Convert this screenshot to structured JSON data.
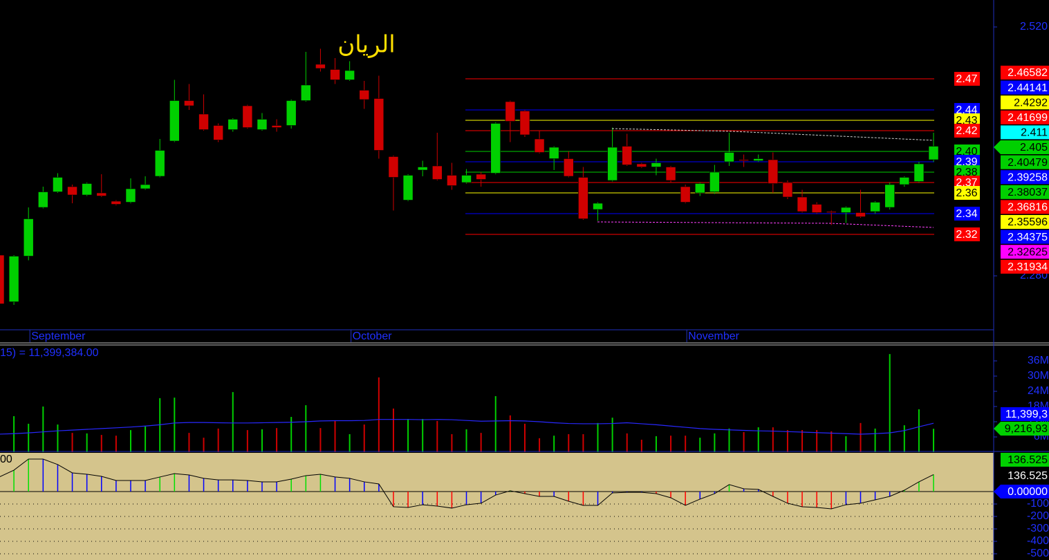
{
  "chart_data": [
    {
      "type": "candlestick",
      "title": "الريان",
      "categories": [
        null,
        null,
        "September",
        null,
        null,
        null,
        null,
        null,
        null,
        null,
        null,
        null,
        null,
        null,
        null,
        null,
        null,
        null,
        null,
        null,
        null,
        null,
        null,
        null,
        "October",
        null,
        null,
        null,
        null,
        null,
        null,
        null,
        null,
        null,
        null,
        null,
        null,
        null,
        null,
        null,
        null,
        null,
        null,
        null,
        null,
        null,
        null,
        "November",
        null,
        null,
        null,
        null,
        null,
        null,
        null,
        null,
        null,
        null,
        null,
        null,
        null,
        null,
        null,
        null,
        null
      ],
      "open": [
        2.3,
        2.255,
        2.299,
        2.346,
        2.361,
        2.366,
        2.358,
        2.36,
        2.352,
        2.351,
        2.364,
        2.376,
        2.41,
        2.449,
        2.436,
        2.425,
        2.421,
        2.444,
        2.421,
        2.425,
        2.425,
        2.449,
        2.484,
        2.479,
        2.469,
        2.459,
        2.451,
        2.395,
        2.353,
        2.382,
        2.386,
        2.377,
        2.37,
        2.378,
        2.379,
        2.448,
        2.439,
        2.412,
        2.393,
        2.393,
        2.375,
        2.344,
        2.372,
        2.405,
        2.388,
        2.385,
        2.385,
        2.366,
        2.36,
        2.361,
        2.39,
        2.392,
        2.391,
        2.392,
        2.37,
        2.356,
        2.349,
        2.342,
        2.341,
        2.341,
        2.342,
        2.346,
        2.368,
        2.371,
        2.392
      ],
      "high": [
        2.302,
        2.3,
        2.346,
        2.366,
        2.379,
        2.368,
        2.37,
        2.378,
        2.353,
        2.374,
        2.376,
        2.412,
        2.469,
        2.465,
        2.455,
        2.427,
        2.432,
        2.445,
        2.437,
        2.431,
        2.45,
        2.496,
        2.499,
        2.49,
        2.487,
        2.468,
        2.473,
        2.396,
        2.378,
        2.391,
        2.418,
        2.389,
        2.383,
        2.38,
        2.428,
        2.449,
        2.44,
        2.42,
        2.405,
        2.4,
        2.385,
        2.351,
        2.423,
        2.417,
        2.389,
        2.393,
        2.386,
        2.368,
        2.37,
        2.387,
        2.418,
        2.397,
        2.397,
        2.399,
        2.372,
        2.363,
        2.351,
        2.343,
        2.347,
        2.363,
        2.352,
        2.37,
        2.376,
        2.39,
        2.418
      ],
      "low": [
        2.253,
        2.252,
        2.295,
        2.345,
        2.36,
        2.35,
        2.357,
        2.356,
        2.348,
        2.35,
        2.363,
        2.375,
        2.409,
        2.44,
        2.42,
        2.409,
        2.419,
        2.422,
        2.42,
        2.419,
        2.422,
        2.448,
        2.477,
        2.465,
        2.468,
        2.441,
        2.393,
        2.343,
        2.352,
        2.376,
        2.372,
        2.363,
        2.369,
        2.366,
        2.378,
        2.409,
        2.414,
        2.398,
        2.382,
        2.375,
        2.334,
        2.333,
        2.371,
        2.386,
        2.384,
        2.377,
        2.37,
        2.35,
        2.357,
        2.359,
        2.386,
        2.385,
        2.39,
        2.36,
        2.354,
        2.341,
        2.34,
        2.329,
        2.331,
        2.336,
        2.34,
        2.344,
        2.366,
        2.37,
        2.39
      ],
      "close": [
        2.253,
        2.299,
        2.335,
        2.361,
        2.375,
        2.358,
        2.369,
        2.357,
        2.349,
        2.364,
        2.368,
        2.401,
        2.449,
        2.444,
        2.421,
        2.411,
        2.431,
        2.423,
        2.431,
        2.423,
        2.449,
        2.464,
        2.48,
        2.469,
        2.478,
        2.45,
        2.401,
        2.375,
        2.377,
        2.385,
        2.373,
        2.367,
        2.377,
        2.373,
        2.427,
        2.429,
        2.416,
        2.399,
        2.404,
        2.376,
        2.335,
        2.35,
        2.404,
        2.387,
        2.385,
        2.389,
        2.372,
        2.351,
        2.369,
        2.38,
        2.399,
        2.391,
        2.393,
        2.369,
        2.356,
        2.342,
        2.341,
        2.341,
        2.346,
        2.337,
        2.351,
        2.368,
        2.375,
        2.388,
        2.405
      ],
      "up_color": "#00d000",
      "down_color": "#d00000",
      "ylim": [
        2.228,
        2.546
      ],
      "yticks": [
        {
          "value": 2.52,
          "label": "2.520"
        },
        {
          "value": 2.28,
          "label": "2.280"
        }
      ],
      "levels": [
        {
          "value": 2.47,
          "label": "2.47",
          "color": "#ff0000",
          "text_color": "#ffffff"
        },
        {
          "value": 2.44,
          "label": "2.44",
          "color": "#0000ff",
          "text_color": "#ffffff"
        },
        {
          "value": 2.43,
          "label": "2.43",
          "color": "#ffff00",
          "text_color": "#000000"
        },
        {
          "value": 2.42,
          "label": "2.42",
          "color": "#ff0000",
          "text_color": "#ffffff"
        },
        {
          "value": 2.4,
          "label": "2.40",
          "color": "#00d000",
          "text_color": "#000000"
        },
        {
          "value": 2.39,
          "label": "2.39",
          "color": "#0000ff",
          "text_color": "#ffffff"
        },
        {
          "value": 2.38,
          "label": "2.38",
          "color": "#00d000",
          "text_color": "#000000"
        },
        {
          "value": 2.37,
          "label": "2.37",
          "color": "#ff0000",
          "text_color": "#ffffff"
        },
        {
          "value": 2.36,
          "label": "2.36",
          "color": "#ffff00",
          "text_color": "#000000"
        },
        {
          "value": 2.34,
          "label": "2.34",
          "color": "#0000ff",
          "text_color": "#ffffff"
        },
        {
          "value": 2.32,
          "label": "2.32",
          "color": "#ff0000",
          "text_color": "#ffffff"
        }
      ],
      "price_tags": [
        {
          "label": "2.46582",
          "color": "#ff0000",
          "text_color": "#ffffff"
        },
        {
          "label": "2.44141",
          "color": "#0000ff",
          "text_color": "#ffffff"
        },
        {
          "label": "2.4292",
          "color": "#ffff00",
          "text_color": "#000000"
        },
        {
          "label": "2.41699",
          "color": "#ff0000",
          "text_color": "#ffffff"
        },
        {
          "label": "2.411",
          "color": "#00ffff",
          "text_color": "#000000"
        },
        {
          "label": "2.405",
          "color": "#00d000",
          "text_color": "#000000",
          "arrow": true
        },
        {
          "label": "2.40479",
          "color": "#00d000",
          "text_color": "#000000"
        },
        {
          "label": "2.39258",
          "color": "#0000ff",
          "text_color": "#ffffff"
        },
        {
          "label": "2.38037",
          "color": "#00d000",
          "text_color": "#000000"
        },
        {
          "label": "2.36816",
          "color": "#ff0000",
          "text_color": "#ffffff"
        },
        {
          "label": "2.35596",
          "color": "#ffff00",
          "text_color": "#000000"
        },
        {
          "label": "2.34375",
          "color": "#0000ff",
          "text_color": "#ffffff"
        },
        {
          "label": "2.32625",
          "color": "#ff00ff",
          "text_color": "#000000"
        },
        {
          "label": "2.31934",
          "color": "#ff0000",
          "text_color": "#ffffff"
        }
      ]
    },
    {
      "type": "volume",
      "subtitle": "15) = 11,399,384.00",
      "values": [
        null,
        14.2,
        11.2,
        18.0,
        10.9,
        7.6,
        7.4,
        6.8,
        6.5,
        8.7,
        10.4,
        21.3,
        21.5,
        7.6,
        5.7,
        9.3,
        23.7,
        8.7,
        9.0,
        9.5,
        13.9,
        18.5,
        9.5,
        12.3,
        7.1,
        10.9,
        29.5,
        17.2,
        13.1,
        13.1,
        12.3,
        7.1,
        9.0,
        7.6,
        22.1,
        14.5,
        11.2,
        5.5,
        6.5,
        7.1,
        7.1,
        11.5,
        13.6,
        7.4,
        4.9,
        6.3,
        6.5,
        6.5,
        5.7,
        7.4,
        9.3,
        7.9,
        9.8,
        9.8,
        8.7,
        8.7,
        8.7,
        8.2,
        6.3,
        11.5,
        9.3,
        38.7,
        10.6,
        16.9,
        9.21693
      ],
      "ma": {
        "color": "#2828ff",
        "values": [
          7.1,
          7.3,
          7.6,
          8.0,
          8.4,
          8.7,
          9.0,
          9.3,
          9.6,
          9.9,
          10.3,
          10.8,
          11.5,
          11.7,
          11.7,
          11.6,
          11.5,
          11.5,
          11.6,
          11.7,
          11.8,
          12.0,
          12.3,
          12.4,
          12.4,
          12.5,
          12.9,
          12.9,
          12.9,
          12.8,
          12.9,
          12.8,
          12.5,
          12.2,
          12.3,
          12.4,
          12.3,
          12.0,
          11.6,
          11.3,
          11.2,
          11.2,
          11.3,
          11.6,
          11.2,
          10.8,
          10.3,
          9.8,
          9.3,
          9.0,
          8.8,
          8.6,
          8.4,
          8.3,
          8.1,
          7.9,
          7.7,
          7.5,
          7.3,
          7.1,
          7.3,
          7.6,
          8.5,
          10.0,
          11.399384
        ]
      },
      "ylim": [
        0,
        42
      ],
      "yticks": [
        {
          "value": 36,
          "label": "36M"
        },
        {
          "value": 30,
          "label": "30M"
        },
        {
          "value": 24,
          "label": "24M"
        },
        {
          "value": 18,
          "label": "18M"
        },
        {
          "value": 12,
          "label": "12M"
        },
        {
          "value": 6,
          "label": "6M"
        }
      ],
      "tags": [
        {
          "label": "11,399,3",
          "color": "#0000ff",
          "text_color": "#ffffff"
        },
        {
          "label": "9,216,93",
          "color": "#00d000",
          "text_color": "#000000",
          "arrow": true
        }
      ]
    },
    {
      "type": "oscillator",
      "note": "00",
      "values": [
        117,
        172,
        261,
        261,
        217,
        150,
        139,
        122,
        89,
        89,
        89,
        117,
        144,
        133,
        106,
        94,
        94,
        89,
        78,
        78,
        100,
        128,
        139,
        117,
        106,
        78,
        61,
        -122,
        -128,
        -106,
        -117,
        -133,
        -106,
        -94,
        -28,
        6,
        -17,
        -39,
        -39,
        -78,
        -111,
        -111,
        -11,
        -6,
        -6,
        -17,
        -50,
        -111,
        -61,
        -17,
        56,
        22,
        17,
        -39,
        -94,
        -122,
        -128,
        -139,
        -106,
        -94,
        -67,
        -39,
        11,
        78,
        136.525
      ],
      "up_color": "#00e000",
      "down_color": "#ff0000",
      "neutral_color": "#0000ff",
      "line_color": "#000000",
      "background": "#d4c48c",
      "ylim": [
        -550,
        311
      ],
      "yticks": [
        -100,
        -200,
        -300,
        -400,
        -500
      ],
      "tags": [
        {
          "label": "136.525",
          "color": "#00d000",
          "text_color": "#000000"
        },
        {
          "label": "136.525",
          "color": "#000000",
          "text_color": "#ffffff"
        },
        {
          "label": "0.00000",
          "color": "#0000ff",
          "text_color": "#ffffff",
          "arrow": true
        }
      ]
    }
  ]
}
